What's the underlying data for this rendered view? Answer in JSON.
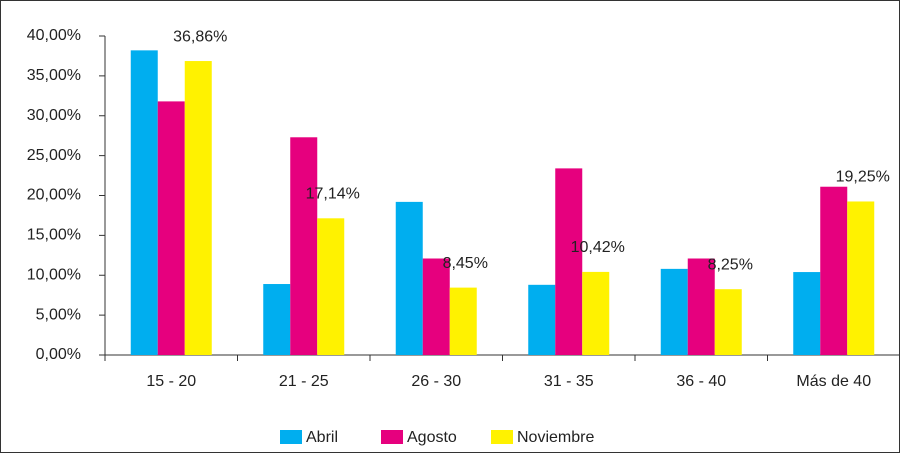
{
  "chart_data": {
    "type": "bar",
    "categories": [
      "15 - 20",
      "21 - 25",
      "26 - 30",
      "31 - 35",
      "36 - 40",
      "Más de 40"
    ],
    "series": [
      {
        "name": "Abril",
        "color": "#00aeef",
        "values": [
          38.2,
          8.9,
          19.2,
          8.8,
          10.8,
          10.4
        ]
      },
      {
        "name": "Agosto",
        "color": "#e6007e",
        "values": [
          31.8,
          27.3,
          12.1,
          23.4,
          12.1,
          21.1
        ]
      },
      {
        "name": "Noviembre",
        "color": "#fff200",
        "values": [
          36.86,
          17.14,
          8.45,
          10.42,
          8.25,
          19.25
        ],
        "value_labels": [
          "36,86%",
          "17,14%",
          "8,45%",
          "10,42%",
          "8,25%",
          "19,25%"
        ]
      }
    ],
    "ylim": [
      0,
      40
    ],
    "yticks": [
      {
        "value": 0,
        "label": "0,00%"
      },
      {
        "value": 5,
        "label": "5,00%"
      },
      {
        "value": 10,
        "label": "10,00%"
      },
      {
        "value": 15,
        "label": "15,00%"
      },
      {
        "value": 20,
        "label": "20,00%"
      },
      {
        "value": 25,
        "label": "25,00%"
      },
      {
        "value": 30,
        "label": "30,00%"
      },
      {
        "value": 35,
        "label": "35,00%"
      },
      {
        "value": 40,
        "label": "40,00%"
      }
    ],
    "legend": "bottom"
  }
}
